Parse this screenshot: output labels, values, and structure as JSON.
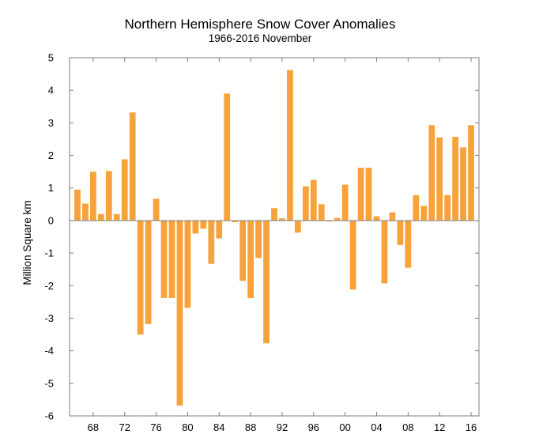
{
  "chart_data": {
    "type": "bar",
    "title": "Northern Hemisphere Snow Cover Anomalies",
    "subtitle": "1966-2016 November",
    "xlabel": "",
    "ylabel": "Million Square km",
    "ylim": [
      -6,
      5
    ],
    "yticks": [
      5,
      4,
      3,
      2,
      1,
      0,
      -1,
      -2,
      -3,
      -4,
      -5,
      -6
    ],
    "xlim": [
      1965,
      2017
    ],
    "xticks": [
      {
        "year": 1968,
        "label": "68"
      },
      {
        "year": 1972,
        "label": "72"
      },
      {
        "year": 1976,
        "label": "76"
      },
      {
        "year": 1980,
        "label": "80"
      },
      {
        "year": 1984,
        "label": "84"
      },
      {
        "year": 1988,
        "label": "88"
      },
      {
        "year": 1992,
        "label": "92"
      },
      {
        "year": 1996,
        "label": "96"
      },
      {
        "year": 2000,
        "label": "00"
      },
      {
        "year": 2004,
        "label": "04"
      },
      {
        "year": 2008,
        "label": "08"
      },
      {
        "year": 2012,
        "label": "12"
      },
      {
        "year": 2016,
        "label": "16"
      }
    ],
    "grid": false,
    "bar_color": "#f7a23b",
    "axis_color": "#7f7f7f",
    "years": [
      1966,
      1967,
      1968,
      1969,
      1970,
      1971,
      1972,
      1973,
      1974,
      1975,
      1976,
      1977,
      1978,
      1979,
      1980,
      1981,
      1982,
      1983,
      1984,
      1985,
      1986,
      1987,
      1988,
      1989,
      1990,
      1991,
      1992,
      1993,
      1994,
      1995,
      1996,
      1997,
      1998,
      1999,
      2000,
      2001,
      2002,
      2003,
      2004,
      2005,
      2006,
      2007,
      2008,
      2009,
      2010,
      2011,
      2012,
      2013,
      2014,
      2015,
      2016
    ],
    "values": [
      0.95,
      0.52,
      1.5,
      0.2,
      1.52,
      0.2,
      1.88,
      3.32,
      -3.5,
      -3.18,
      0.67,
      -2.38,
      -2.38,
      -5.68,
      -2.68,
      -0.4,
      -0.25,
      -1.33,
      -0.55,
      3.9,
      -0.05,
      -1.85,
      -2.38,
      -1.15,
      -3.77,
      0.38,
      0.07,
      4.62,
      -0.37,
      1.05,
      1.25,
      0.5,
      -0.03,
      0.08,
      1.1,
      -2.12,
      1.62,
      1.62,
      0.13,
      -1.93,
      0.25,
      -0.75,
      -1.45,
      0.78,
      0.45,
      2.93,
      2.55,
      0.78,
      2.57,
      2.25,
      2.93
    ]
  }
}
